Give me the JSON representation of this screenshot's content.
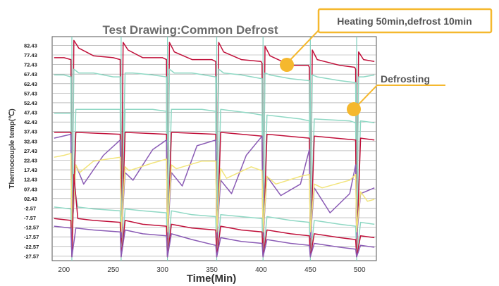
{
  "chart_data": {
    "type": "line",
    "title": "Test Drawing:Common Defrost",
    "xlabel": "Time(Min)",
    "ylabel": "Thermocouple temp(℃)",
    "xlim": [
      188,
      517
    ],
    "ylim": [
      -30,
      87
    ],
    "x_ticks": [
      "200",
      "250",
      "300",
      "350",
      "400",
      "450",
      "500"
    ],
    "x_tick_values": [
      200,
      250,
      300,
      350,
      400,
      450,
      500
    ],
    "y_ticks": [
      "82.43",
      "77.43",
      "72.43",
      "67.43",
      "62.43",
      "57.43",
      "52.43",
      "47.43",
      "42.43",
      "37.43",
      "32.43",
      "27.43",
      "22.43",
      "17.43",
      "12.43",
      "07.43",
      "02.43",
      "-2.57",
      "-7.57",
      "-12.57",
      "-17.57",
      "-22.57",
      "-27.57"
    ],
    "y_tick_values": [
      82.43,
      77.43,
      72.43,
      67.43,
      62.43,
      57.43,
      52.43,
      47.43,
      42.43,
      37.43,
      32.43,
      27.43,
      22.43,
      17.43,
      12.43,
      7.43,
      2.43,
      -2.57,
      -7.57,
      -12.57,
      -17.57,
      -22.57,
      -27.57
    ],
    "grid": true,
    "defrost_times": [
      208,
      258,
      305,
      355,
      402,
      450,
      497
    ],
    "series": [
      {
        "color": "#c0103a",
        "x": [
          190,
          200,
          207,
          208,
          210,
          215,
          230,
          250,
          257,
          258,
          260,
          265,
          280,
          300,
          304,
          305,
          307,
          312,
          330,
          350,
          354,
          355,
          357,
          362,
          380,
          400,
          401,
          402,
          404,
          409,
          430,
          448,
          449,
          450,
          452,
          457,
          480,
          495,
          496,
          497,
          499,
          504,
          515
        ],
        "y": [
          76,
          76,
          75,
          -25,
          85,
          81,
          77,
          76,
          75,
          -25,
          84,
          80,
          76,
          76,
          75,
          -25,
          84,
          79,
          75,
          75,
          74,
          -25,
          84,
          79,
          75,
          74,
          73,
          -25,
          82,
          77,
          72,
          72,
          71,
          -25,
          80,
          75,
          72,
          71,
          70,
          -25,
          79,
          75,
          74
        ]
      },
      {
        "color": "#8fd8c4",
        "x": [
          190,
          200,
          207,
          208,
          210,
          215,
          230,
          250,
          257,
          258,
          262,
          270,
          290,
          304,
          305,
          307,
          312,
          330,
          354,
          355,
          357,
          362,
          380,
          401,
          402,
          404,
          409,
          430,
          449,
          450,
          452,
          457,
          480,
          496,
          497,
          499,
          504,
          515
        ],
        "y": [
          67,
          67,
          66,
          -20,
          70,
          68,
          68,
          66,
          66,
          -20,
          68,
          68,
          67,
          66,
          -20,
          70,
          68,
          68,
          66,
          -20,
          70,
          68,
          67,
          65,
          -20,
          68,
          67,
          65,
          64,
          -20,
          67,
          66,
          64,
          63,
          -20,
          66,
          66,
          67
        ]
      },
      {
        "color": "#8fd8c4",
        "x": [
          190,
          207,
          208,
          212,
          230,
          257,
          258,
          262,
          290,
          304,
          305,
          309,
          340,
          354,
          355,
          359,
          390,
          401,
          402,
          406,
          440,
          449,
          450,
          454,
          490,
          496,
          497,
          501,
          515
        ],
        "y": [
          47,
          47,
          -22,
          49,
          49,
          49,
          -22,
          49,
          49,
          48,
          -22,
          49,
          49,
          48,
          -22,
          49,
          47,
          46,
          -22,
          46,
          44,
          43,
          -22,
          44,
          43,
          42,
          -22,
          43,
          42
        ]
      },
      {
        "color": "#c0103a",
        "x": [
          190,
          207,
          208,
          212,
          257,
          258,
          262,
          304,
          305,
          309,
          354,
          355,
          359,
          401,
          402,
          406,
          449,
          450,
          454,
          496,
          497,
          501,
          515
        ],
        "y": [
          37,
          37,
          -25,
          37,
          36,
          -25,
          37,
          36,
          -25,
          37,
          36,
          -25,
          37,
          35,
          -25,
          36,
          34,
          -25,
          35,
          33,
          -25,
          34,
          33
        ]
      },
      {
        "color": "#8a5bb5",
        "x": [
          190,
          207,
          208,
          212,
          220,
          240,
          257,
          258,
          262,
          270,
          290,
          304,
          305,
          309,
          320,
          335,
          354,
          355,
          359,
          370,
          385,
          401,
          402,
          406,
          420,
          440,
          449,
          450,
          454,
          470,
          490,
          496,
          497,
          501,
          515
        ],
        "y": [
          34,
          36,
          -18,
          20,
          10,
          25,
          33,
          -18,
          16,
          12,
          28,
          33,
          -18,
          16,
          9,
          30,
          33,
          -18,
          12,
          5,
          25,
          35,
          -18,
          14,
          4,
          10,
          28,
          -18,
          8,
          -5,
          5,
          20,
          -18,
          5,
          8
        ]
      },
      {
        "color": "#f2e47a",
        "x": [
          190,
          200,
          207,
          208,
          212,
          216,
          230,
          257,
          258,
          262,
          266,
          290,
          304,
          305,
          309,
          314,
          340,
          354,
          355,
          359,
          365,
          390,
          401,
          402,
          406,
          415,
          440,
          449,
          450,
          454,
          462,
          490,
          496,
          497,
          501,
          508,
          515
        ],
        "y": [
          24,
          25,
          26,
          -15,
          20,
          16,
          22,
          24,
          -15,
          19,
          17,
          21,
          23,
          -15,
          20,
          18,
          22,
          22,
          -15,
          18,
          13,
          19,
          17,
          -15,
          14,
          10,
          14,
          15,
          -15,
          10,
          8,
          12,
          15,
          -15,
          6,
          1,
          2
        ]
      },
      {
        "color": "#8fd8c4",
        "x": [
          190,
          207,
          208,
          210,
          214,
          230,
          257,
          258,
          262,
          280,
          304,
          305,
          309,
          330,
          354,
          355,
          359,
          380,
          401,
          402,
          406,
          430,
          449,
          450,
          454,
          480,
          496,
          497,
          501,
          515
        ],
        "y": [
          -2,
          -3,
          -28,
          10,
          -2,
          -3,
          -4,
          -28,
          -3,
          -4,
          -5,
          -28,
          -4,
          -6,
          -7,
          -28,
          -6,
          -7,
          -8,
          -28,
          -7,
          -9,
          -10,
          -28,
          -9,
          -11,
          -12,
          -28,
          -10,
          -11
        ]
      },
      {
        "color": "#c0103a",
        "x": [
          190,
          207,
          208,
          210,
          214,
          230,
          257,
          258,
          262,
          280,
          304,
          305,
          309,
          330,
          354,
          355,
          359,
          380,
          401,
          402,
          406,
          430,
          449,
          450,
          454,
          480,
          496,
          497,
          501,
          515
        ],
        "y": [
          -8,
          -9,
          -28,
          15,
          -8,
          -9,
          -10,
          -28,
          -9,
          -11,
          -12,
          -28,
          -11,
          -13,
          -14,
          -28,
          -12,
          -14,
          -15,
          -28,
          -14,
          -16,
          -17,
          -28,
          -16,
          -18,
          -19,
          -28,
          -17,
          -18
        ]
      },
      {
        "color": "#8a5bb5",
        "x": [
          190,
          207,
          208,
          212,
          230,
          257,
          258,
          262,
          280,
          304,
          305,
          309,
          330,
          354,
          355,
          359,
          380,
          401,
          402,
          406,
          430,
          449,
          450,
          454,
          480,
          496,
          497,
          501,
          515
        ],
        "y": [
          -12,
          -13,
          -28,
          -13,
          -14,
          -15,
          -28,
          -14,
          -16,
          -17,
          -28,
          -16,
          -19,
          -22,
          -28,
          -18,
          -20,
          -21,
          -28,
          -19,
          -21,
          -22,
          -28,
          -21,
          -23,
          -24,
          -28,
          -22,
          -23
        ]
      }
    ]
  },
  "callouts": [
    {
      "text": "Heating 50min,defrost 10min"
    },
    {
      "text": "Defrosting"
    }
  ],
  "callout_color": "#f5b82e"
}
